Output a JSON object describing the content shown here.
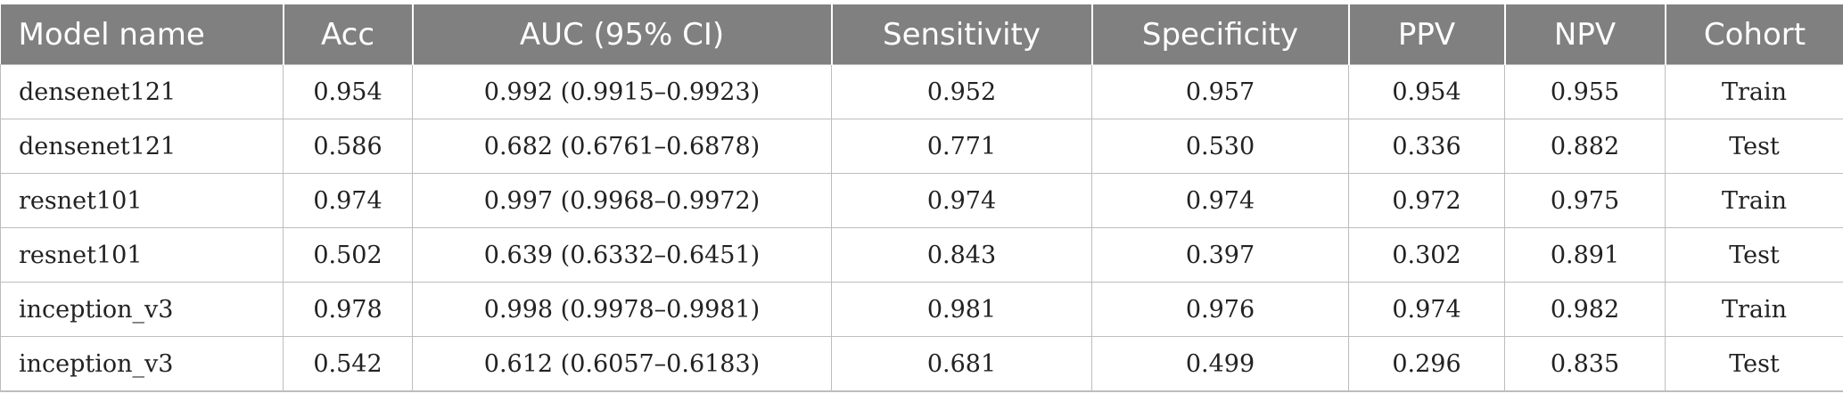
{
  "table": {
    "headers": [
      "Model name",
      "Acc",
      "AUC (95% CI)",
      "Sensitivity",
      "Specificity",
      "PPV",
      "NPV",
      "Cohort"
    ],
    "rows": [
      [
        "densenet121",
        "0.954",
        "0.992 (0.9915–0.9923)",
        "0.952",
        "0.957",
        "0.954",
        "0.955",
        "Train"
      ],
      [
        "densenet121",
        "0.586",
        "0.682 (0.6761–0.6878)",
        "0.771",
        "0.530",
        "0.336",
        "0.882",
        "Test"
      ],
      [
        "resnet101",
        "0.974",
        "0.997 (0.9968–0.9972)",
        "0.974",
        "0.974",
        "0.972",
        "0.975",
        "Train"
      ],
      [
        "resnet101",
        "0.502",
        "0.639 (0.6332–0.6451)",
        "0.843",
        "0.397",
        "0.302",
        "0.891",
        "Test"
      ],
      [
        "inception_v3",
        "0.978",
        "0.998 (0.9978–0.9981)",
        "0.981",
        "0.976",
        "0.974",
        "0.982",
        "Train"
      ],
      [
        "inception_v3",
        "0.542",
        "0.612 (0.6057–0.6183)",
        "0.681",
        "0.499",
        "0.296",
        "0.835",
        "Test"
      ]
    ]
  },
  "colors": {
    "header_background": "#808080",
    "header_text": "#ffffff",
    "grid_line": "#bdbdbd",
    "body_text": "#222222"
  }
}
